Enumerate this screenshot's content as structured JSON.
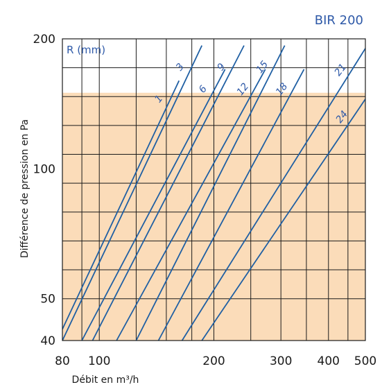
{
  "chart_data": {
    "type": "line",
    "title": "BIR 200",
    "xlabel": "Débit en m³/h",
    "ylabel": "Différence de pression en Pa",
    "xscale": "log",
    "yscale": "log",
    "xlim": [
      80,
      500
    ],
    "ylim": [
      40,
      200
    ],
    "x_ticks": [
      "80",
      "100",
      "200",
      "300",
      "400",
      "500"
    ],
    "x_tick_values": [
      80,
      100,
      200,
      300,
      400,
      500
    ],
    "y_ticks": [
      "40",
      "50",
      "100",
      "200"
    ],
    "y_tick_values": [
      40,
      50,
      100,
      200
    ],
    "grid": true,
    "legend_title": "R (mm)",
    "shaded_region": {
      "y_from": 40,
      "y_to": 150,
      "color": "#fbdcb9"
    },
    "colors": {
      "line": "#1f5fa3",
      "grid": "#1a1a1a",
      "accent": "#2f5aa8"
    },
    "series": [
      {
        "name": "1",
        "x": [
          80,
          162
        ],
        "y": [
          42.5,
          160
        ]
      },
      {
        "name": "3",
        "x": [
          80,
          186
        ],
        "y": [
          40.0,
          193
        ]
      },
      {
        "name": "6",
        "x": [
          90,
          214
        ],
        "y": [
          40.0,
          170
        ]
      },
      {
        "name": "9",
        "x": [
          96,
          240
        ],
        "y": [
          40.0,
          193
        ]
      },
      {
        "name": "12",
        "x": [
          111,
          273
        ],
        "y": [
          40.0,
          170
        ]
      },
      {
        "name": "15",
        "x": [
          125,
          307
        ],
        "y": [
          40.0,
          193
        ]
      },
      {
        "name": "18",
        "x": [
          143,
          345
        ],
        "y": [
          40.0,
          170
        ]
      },
      {
        "name": "21",
        "x": [
          165,
          500
        ],
        "y": [
          40.0,
          190
        ]
      },
      {
        "name": "24",
        "x": [
          186,
          500
        ],
        "y": [
          40.0,
          145
        ]
      }
    ]
  }
}
